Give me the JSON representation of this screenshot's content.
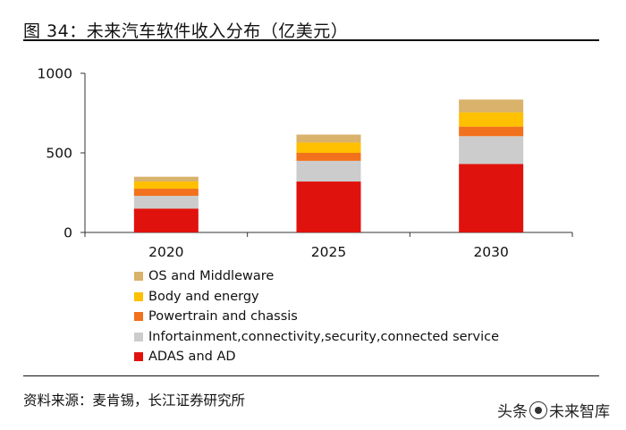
{
  "header": {
    "title": "图 34：未来汽车软件收入分布（亿美元）"
  },
  "footer": {
    "source": "资料来源：麦肯锡，长江证券研究所"
  },
  "watermark": {
    "prefix": "头条",
    "account": "未来智库"
  },
  "colors": {
    "os_middleware": "#D9B26B",
    "body_energy": "#FFC000",
    "powertrain": "#F2711C",
    "infotainment": "#CCCCCC",
    "adas": "#E0120D",
    "axis": "#333333"
  },
  "chart_data": {
    "type": "bar",
    "stacked": true,
    "title": "未来汽车软件收入分布（亿美元）",
    "xlabel": "",
    "ylabel": "",
    "categories": [
      "2020",
      "2025",
      "2030"
    ],
    "ylim": [
      0,
      1000
    ],
    "yticks": [
      0,
      500,
      1000
    ],
    "ytick_labels": [
      "0",
      "500",
      "1000"
    ],
    "grid": false,
    "legend_position": "bottom",
    "series": [
      {
        "name": "ADAS and AD",
        "color_key": "adas",
        "values": [
          150,
          320,
          430
        ]
      },
      {
        "name": "Infortainment,connectivity,security,connected service",
        "color_key": "infotainment",
        "values": [
          80,
          130,
          175
        ]
      },
      {
        "name": "Powertrain and chassis",
        "color_key": "powertrain",
        "values": [
          45,
          50,
          60
        ]
      },
      {
        "name": "Body and energy",
        "color_key": "body_energy",
        "values": [
          45,
          65,
          90
        ]
      },
      {
        "name": "OS and Middleware",
        "color_key": "os_middleware",
        "values": [
          30,
          50,
          80
        ]
      }
    ],
    "legend_order": [
      "OS and Middleware",
      "Body and energy",
      "Powertrain and chassis",
      "Infortainment,connectivity,security,connected service",
      "ADAS and AD"
    ]
  }
}
